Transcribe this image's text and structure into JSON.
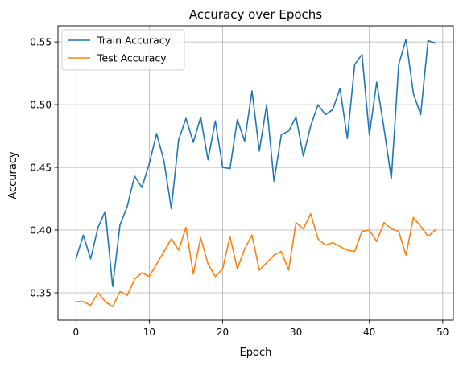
{
  "chart_data": {
    "type": "line",
    "title": "Accuracy over Epochs",
    "xlabel": "Epoch",
    "ylabel": "Accuracy",
    "xlim": [
      -2.45,
      51.45
    ],
    "ylim": [
      0.3282,
      0.5629
    ],
    "xticks": [
      0,
      10,
      20,
      30,
      40,
      50
    ],
    "yticks": [
      0.35,
      0.4,
      0.45,
      0.5,
      0.55
    ],
    "xtick_labels": [
      "0",
      "10",
      "20",
      "30",
      "40",
      "50"
    ],
    "ytick_labels": [
      "0.35",
      "0.40",
      "0.45",
      "0.50",
      "0.55"
    ],
    "grid": true,
    "legend_position": "top-left",
    "x": [
      0,
      1,
      2,
      3,
      4,
      5,
      6,
      7,
      8,
      9,
      10,
      11,
      12,
      13,
      14,
      15,
      16,
      17,
      18,
      19,
      20,
      21,
      22,
      23,
      24,
      25,
      26,
      27,
      28,
      29,
      30,
      31,
      32,
      33,
      34,
      35,
      36,
      37,
      38,
      39,
      40,
      41,
      42,
      43,
      44,
      45,
      46,
      47,
      48,
      49
    ],
    "series": [
      {
        "name": "Train Accuracy",
        "color": "#1f77b4",
        "values": [
          0.377,
          0.396,
          0.377,
          0.402,
          0.415,
          0.355,
          0.404,
          0.419,
          0.443,
          0.434,
          0.453,
          0.477,
          0.455,
          0.417,
          0.472,
          0.489,
          0.47,
          0.49,
          0.456,
          0.487,
          0.45,
          0.449,
          0.488,
          0.471,
          0.511,
          0.463,
          0.5,
          0.439,
          0.476,
          0.479,
          0.49,
          0.459,
          0.483,
          0.5,
          0.492,
          0.496,
          0.513,
          0.473,
          0.532,
          0.54,
          0.476,
          0.518,
          0.481,
          0.441,
          0.532,
          0.552,
          0.509,
          0.492,
          0.551,
          0.549
        ]
      },
      {
        "name": "Test Accuracy",
        "color": "#ff7f0e",
        "values": [
          0.343,
          0.343,
          0.34,
          0.35,
          0.343,
          0.339,
          0.351,
          0.348,
          0.361,
          0.366,
          0.363,
          0.373,
          0.383,
          0.393,
          0.384,
          0.402,
          0.365,
          0.394,
          0.373,
          0.363,
          0.369,
          0.395,
          0.369,
          0.385,
          0.396,
          0.368,
          0.374,
          0.38,
          0.383,
          0.368,
          0.406,
          0.401,
          0.413,
          0.393,
          0.388,
          0.39,
          0.387,
          0.384,
          0.383,
          0.399,
          0.4,
          0.391,
          0.406,
          0.401,
          0.399,
          0.38,
          0.41,
          0.403,
          0.395,
          0.4
        ]
      }
    ]
  }
}
